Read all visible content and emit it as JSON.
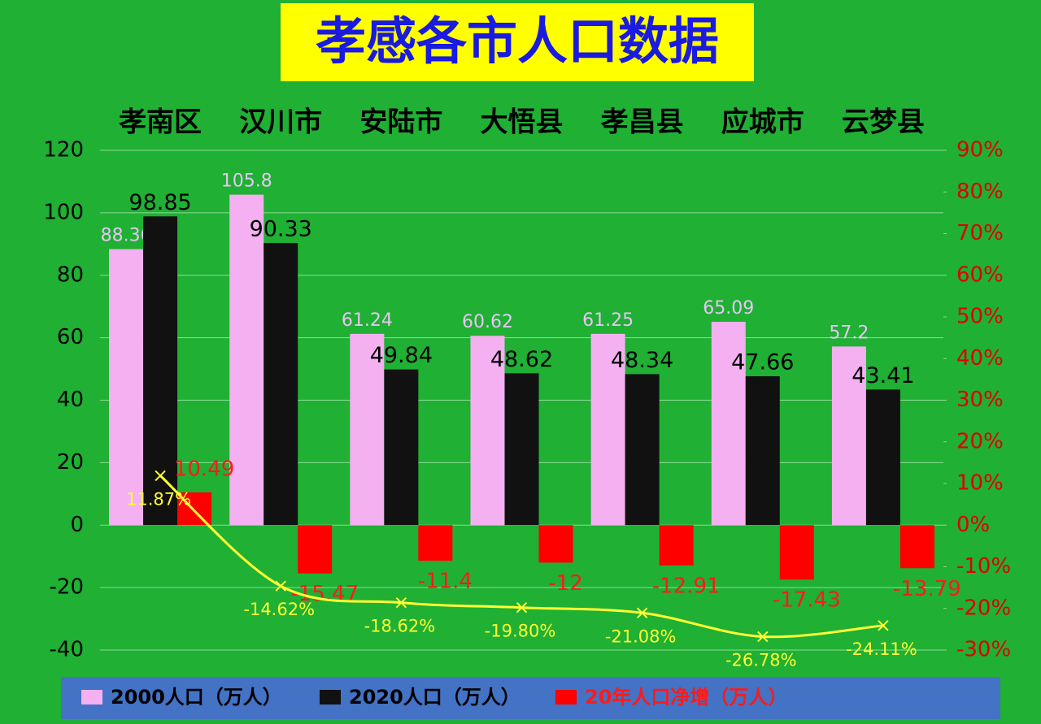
{
  "chart_data": {
    "type": "bar",
    "title": "孝感各市人口数据",
    "categories": [
      "孝南区",
      "汉川市",
      "安陆市",
      "大悟县",
      "孝昌县",
      "应城市",
      "云梦县"
    ],
    "series": [
      {
        "name": "2000人口（万人）",
        "color": "#f4b0f0",
        "values": [
          88.36,
          105.8,
          61.24,
          60.62,
          61.25,
          65.09,
          57.2
        ]
      },
      {
        "name": "2020人口（万人）",
        "color": "#111111",
        "values": [
          98.85,
          90.33,
          49.84,
          48.62,
          48.34,
          47.66,
          43.41
        ]
      },
      {
        "name": "20年人口净增（万人）",
        "color": "#ff0000",
        "values": [
          10.49,
          -15.47,
          -11.4,
          -12,
          -12.91,
          -17.43,
          -13.79
        ]
      },
      {
        "type": "line",
        "axis": "y2",
        "color": "#ffff33",
        "values": [
          11.87,
          -14.62,
          -18.62,
          -19.8,
          -21.08,
          -26.78,
          -24.11
        ],
        "value_labels": [
          "11.87%",
          "-14.62%",
          "-18.62%",
          "-19.80%",
          "-21.08%",
          "-26.78%",
          "-24.11%"
        ]
      }
    ],
    "ylim": [
      -40,
      120
    ],
    "yticks": [
      -40,
      -20,
      0,
      20,
      40,
      60,
      80,
      100,
      120
    ],
    "y2lim": [
      -30,
      90
    ],
    "y2ticks": [
      {
        "value": -30,
        "label": "-30%"
      },
      {
        "value": -20,
        "label": "-20%"
      },
      {
        "value": -10,
        "label": "-10%"
      },
      {
        "value": 0,
        "label": "0%"
      },
      {
        "value": 10,
        "label": "10%"
      },
      {
        "value": 20,
        "label": "20%"
      },
      {
        "value": 30,
        "label": "30%"
      },
      {
        "value": 40,
        "label": "40%"
      },
      {
        "value": 50,
        "label": "50%"
      },
      {
        "value": 60,
        "label": "60%"
      },
      {
        "value": 70,
        "label": "70%"
      },
      {
        "value": 80,
        "label": "80%"
      },
      {
        "value": 90,
        "label": "90%"
      }
    ],
    "grid": true,
    "legend": "bottom"
  }
}
